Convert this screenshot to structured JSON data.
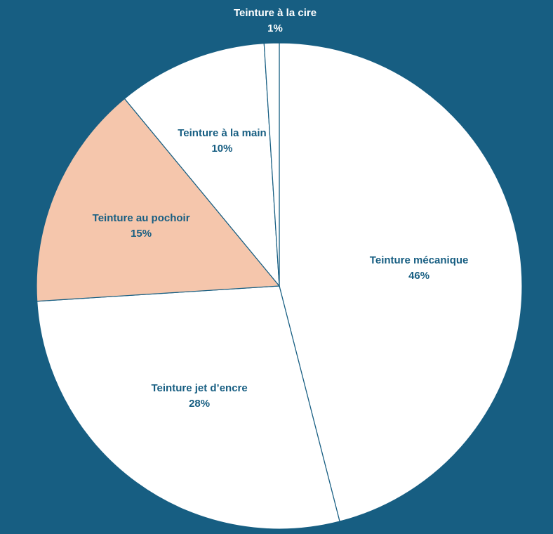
{
  "chart_data": {
    "type": "pie",
    "slices": [
      {
        "label": "Teinture mécanique",
        "percent_label": "46%",
        "value": 46,
        "color": "#ffffff"
      },
      {
        "label": "Teinture jet d’encre",
        "percent_label": "28%",
        "value": 28,
        "color": "#ffffff"
      },
      {
        "label": "Teinture au pochoir",
        "percent_label": "15%",
        "value": 15,
        "color": "#f5c6ac"
      },
      {
        "label": "Teinture à la main",
        "percent_label": "10%",
        "value": 10,
        "color": "#ffffff"
      },
      {
        "label": "Teinture à la cire",
        "percent_label": "1%",
        "value": 1,
        "color": "#ffffff"
      }
    ],
    "title": "",
    "legend": "none",
    "colors": {
      "background": "#175e82",
      "border": "#175e82",
      "label_text": "#175e82",
      "outside_label_text": "#ffffff"
    }
  }
}
